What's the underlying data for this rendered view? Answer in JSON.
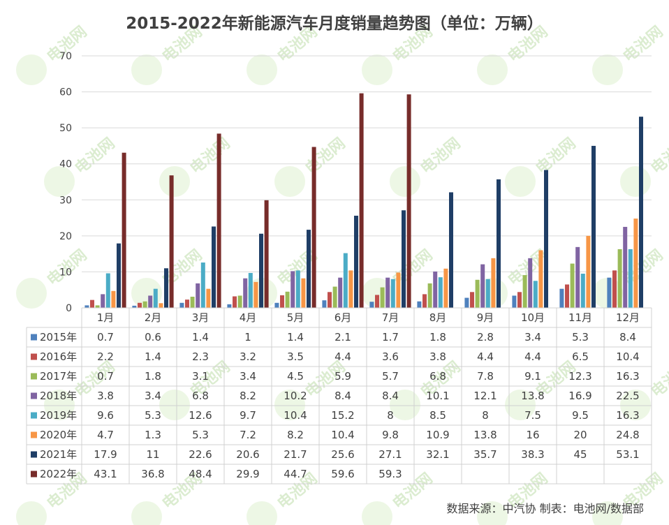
{
  "chart_data": {
    "type": "bar",
    "title": "2015-2022年新能源汽车月度销量趋势图（单位：万辆）",
    "categories": [
      "1月",
      "2月",
      "3月",
      "4月",
      "5月",
      "6月",
      "7月",
      "8月",
      "9月",
      "10月",
      "11月",
      "12月"
    ],
    "ylim": [
      0,
      70
    ],
    "yticks": [
      0,
      10,
      20,
      30,
      40,
      50,
      60,
      70
    ],
    "grid": true,
    "legend": "data-table-left",
    "series": [
      {
        "name": "2015年",
        "color": "#4f81bd",
        "values": [
          0.7,
          0.6,
          1.4,
          1.0,
          1.4,
          2.1,
          1.7,
          1.8,
          2.8,
          3.4,
          5.3,
          8.4
        ]
      },
      {
        "name": "2016年",
        "color": "#c0504d",
        "values": [
          2.2,
          1.4,
          2.3,
          3.2,
          3.5,
          4.4,
          3.6,
          3.8,
          4.4,
          4.4,
          6.5,
          10.4
        ]
      },
      {
        "name": "2017年",
        "color": "#9bbb59",
        "values": [
          0.7,
          1.8,
          3.1,
          3.4,
          4.5,
          5.9,
          5.7,
          6.8,
          7.8,
          9.1,
          12.3,
          16.3
        ]
      },
      {
        "name": "2018年",
        "color": "#8064a2",
        "values": [
          3.8,
          3.4,
          6.8,
          8.2,
          10.2,
          8.4,
          8.4,
          10.1,
          12.1,
          13.8,
          16.9,
          22.5
        ]
      },
      {
        "name": "2019年",
        "color": "#4bacc6",
        "values": [
          9.6,
          5.3,
          12.6,
          9.7,
          10.4,
          15.2,
          8,
          8.5,
          8,
          7.5,
          9.5,
          16.3
        ]
      },
      {
        "name": "2020年",
        "color": "#f79646",
        "values": [
          4.7,
          1.3,
          5.3,
          7.2,
          8.2,
          10.4,
          9.8,
          10.9,
          13.8,
          16,
          20,
          24.8
        ]
      },
      {
        "name": "2021年",
        "color": "#1f3e66",
        "values": [
          17.9,
          11,
          22.6,
          20.6,
          21.7,
          25.6,
          27.1,
          32.1,
          35.7,
          38.3,
          45,
          53.1
        ]
      },
      {
        "name": "2022年",
        "color": "#772c2a",
        "values": [
          43.1,
          36.8,
          48.4,
          29.9,
          44.7,
          59.6,
          59.3,
          null,
          null,
          null,
          null,
          null
        ]
      }
    ]
  },
  "source": "数据来源：中汽协  制表：电池网/数据部",
  "watermark": "电池网"
}
